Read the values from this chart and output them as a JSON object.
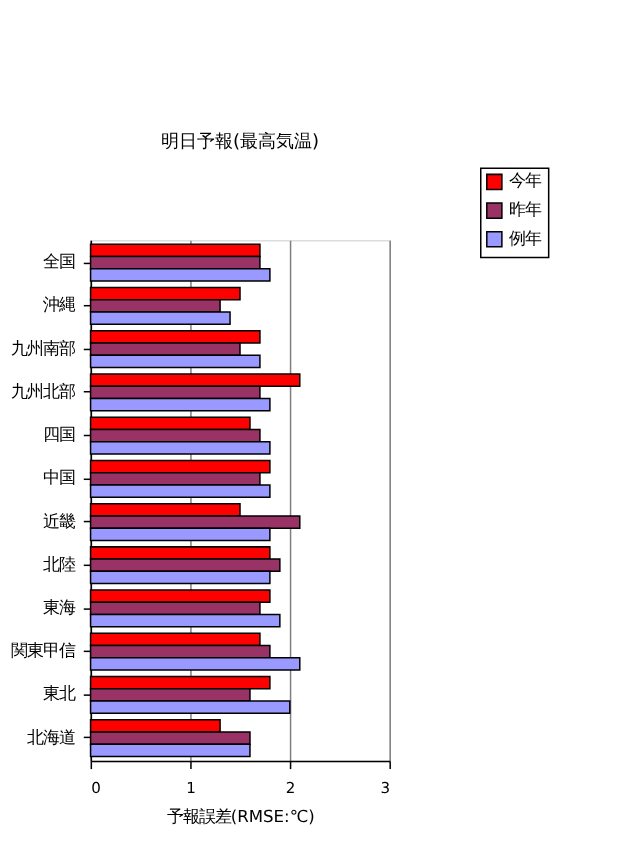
{
  "chart_data": {
    "type": "bar",
    "orientation": "horizontal",
    "title": "明日予報(最高気温)",
    "xlabel": "予報誤差(RMSE:℃)",
    "categories": [
      "全国",
      "沖縄",
      "九州南部",
      "九州北部",
      "四国",
      "中国",
      "近畿",
      "北陸",
      "東海",
      "関東甲信",
      "東北",
      "北海道"
    ],
    "series": [
      {
        "name": "今年",
        "color": "#ff0000",
        "values": [
          1.7,
          1.5,
          1.7,
          2.1,
          1.6,
          1.8,
          1.5,
          1.8,
          1.8,
          1.7,
          1.8,
          1.3
        ]
      },
      {
        "name": "昨年",
        "color": "#993366",
        "values": [
          1.7,
          1.3,
          1.5,
          1.7,
          1.7,
          1.7,
          2.1,
          1.9,
          1.7,
          1.8,
          1.6,
          1.6
        ]
      },
      {
        "name": "例年",
        "color": "#9999ff",
        "values": [
          1.8,
          1.4,
          1.7,
          1.8,
          1.8,
          1.8,
          1.8,
          1.8,
          1.9,
          2.1,
          2.0,
          1.6
        ]
      }
    ],
    "xlim": [
      0,
      3
    ],
    "xticks": [
      0,
      1,
      2,
      3
    ],
    "grid": "x",
    "legend": "top right"
  }
}
